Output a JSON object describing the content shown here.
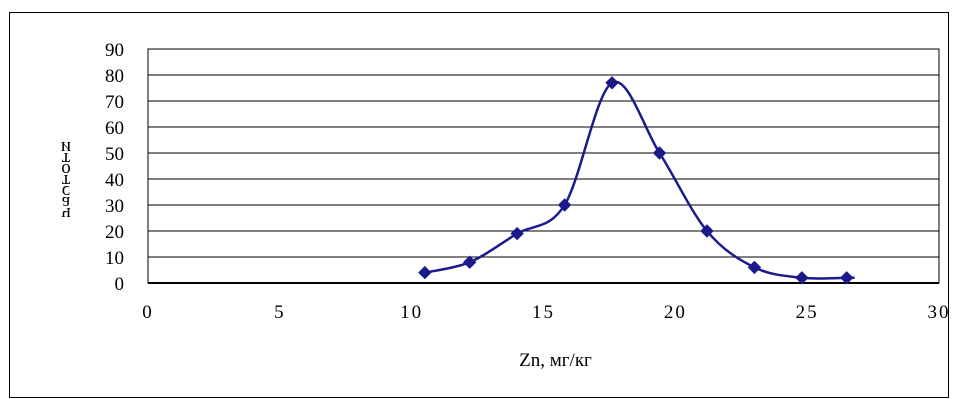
{
  "chart_data": {
    "type": "line",
    "title": "",
    "xlabel": "Zn, мг/кг",
    "ylabel": "частоти",
    "xlim": [
      0,
      30
    ],
    "ylim": [
      0,
      90
    ],
    "x_ticks": [
      "0",
      "5",
      "10",
      "15",
      "20",
      "25",
      "30"
    ],
    "y_ticks": [
      "0",
      "10",
      "20",
      "30",
      "40",
      "50",
      "60",
      "70",
      "80",
      "90"
    ],
    "grid": "horizontal",
    "legend": "none",
    "smooth": true,
    "series": [
      {
        "color": "#1a1a8c",
        "marker": "diamond",
        "points": [
          {
            "x": 10.5,
            "y": 4
          },
          {
            "x": 12.2,
            "y": 8
          },
          {
            "x": 14.0,
            "y": 19
          },
          {
            "x": 15.8,
            "y": 30
          },
          {
            "x": 17.6,
            "y": 77
          },
          {
            "x": 19.4,
            "y": 50
          },
          {
            "x": 21.2,
            "y": 20
          },
          {
            "x": 23.0,
            "y": 6
          },
          {
            "x": 24.8,
            "y": 2
          },
          {
            "x": 26.5,
            "y": 2
          }
        ],
        "line_end_x": 26.8
      }
    ]
  }
}
